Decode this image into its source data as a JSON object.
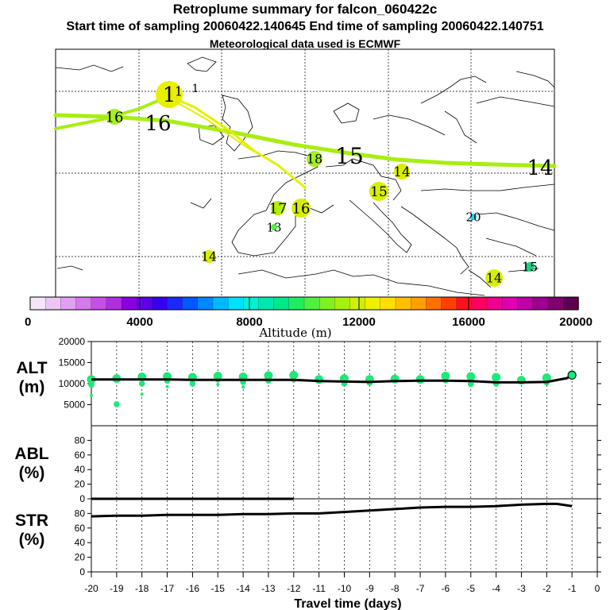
{
  "titles": {
    "main": "Retroplume summary for falcon_060422c",
    "times": "Start time of sampling 20060422.140645     End time of sampling 20060422.140751",
    "met": "Meteorological data used is ECMWF"
  },
  "colorbar": {
    "label": "Altitude (m)",
    "ticks": [
      "0",
      "4000",
      "8000",
      "12000",
      "16000",
      "20000"
    ],
    "colors": [
      "#f4e6f8",
      "#ecc6f4",
      "#e2a0f0",
      "#d47aea",
      "#c450e6",
      "#b02ee0",
      "#8c00e0",
      "#6000e8",
      "#3800f0",
      "#1c28f8",
      "#0058ff",
      "#0088ff",
      "#00b8ff",
      "#00e0ff",
      "#00f0d8",
      "#00e8b0",
      "#00e888",
      "#20ec60",
      "#50f040",
      "#80f020",
      "#a8f010",
      "#d0f000",
      "#f0f000",
      "#ffe000",
      "#ffc000",
      "#ffa000",
      "#ff7000",
      "#ff4000",
      "#ff1020",
      "#ff0060",
      "#f00090",
      "#e000b0",
      "#c000a8",
      "#a00090",
      "#800070",
      "#600050"
    ]
  },
  "map_labels": [
    {
      "text": "1",
      "color": "#e0ef00"
    },
    {
      "text": "1",
      "color": "#e0ef00"
    },
    {
      "text": "1",
      "color": "#e0ef00"
    },
    {
      "text": "16",
      "color": "#a6ee22"
    },
    {
      "text": "16",
      "color": "#d8ef00"
    },
    {
      "text": "18",
      "color": "#a6ee22"
    },
    {
      "text": "15",
      "color": "#a6ee22"
    },
    {
      "text": "14",
      "color": "#d8ef00"
    },
    {
      "text": "14",
      "color": "#b4ef00"
    },
    {
      "text": "15",
      "color": "#d8ef00"
    },
    {
      "text": "17",
      "color": "#b4ef00"
    },
    {
      "text": "16",
      "color": "#d8ef00"
    },
    {
      "text": "13",
      "color": "#50f040"
    },
    {
      "text": "20",
      "color": "#00e0ff"
    },
    {
      "text": "14",
      "color": "#d8ef00"
    },
    {
      "text": "14",
      "color": "#d8ef00"
    },
    {
      "text": "15",
      "color": "#20d080"
    }
  ],
  "chart_data": {
    "type": "line",
    "xlabel": "Travel time (days)",
    "x_ticks": [
      "-20",
      "-19",
      "-18",
      "-17",
      "-16",
      "-15",
      "-14",
      "-13",
      "-12",
      "-11",
      "-10",
      "-9",
      "-8",
      "-7",
      "-6",
      "-5",
      "-4",
      "-3",
      "-2",
      "-1",
      "0"
    ],
    "xlim": [
      -20,
      0
    ],
    "panels": [
      {
        "label_line1": "ALT",
        "label_line2": "(m)",
        "ylim": [
          0,
          20000
        ],
        "y_ticks": [
          "20000",
          "15000",
          "10000",
          "5000"
        ],
        "x": [
          -20,
          -19,
          -18,
          -17,
          -16,
          -15,
          -14,
          -13,
          -12,
          -11,
          -10,
          -9,
          -8,
          -7,
          -6,
          -5,
          -4,
          -3,
          -2,
          -1.2,
          -1
        ],
        "values": [
          11000,
          11000,
          11000,
          11000,
          10900,
          10900,
          10900,
          10900,
          10900,
          10600,
          10500,
          10400,
          10600,
          10700,
          10700,
          10600,
          10300,
          10300,
          10400,
          11300,
          12000
        ],
        "point_clusters": [
          {
            "x": -20,
            "y": [
              11000,
              9700,
              7200
            ]
          },
          {
            "x": -19,
            "y": [
              11200,
              5100
            ]
          },
          {
            "x": -18,
            "y": [
              11600,
              10000,
              7500
            ]
          },
          {
            "x": -17,
            "y": [
              11700,
              10700,
              9300
            ]
          },
          {
            "x": -16,
            "y": [
              11500,
              10000
            ]
          },
          {
            "x": -15,
            "y": [
              11800,
              11000,
              9800
            ]
          },
          {
            "x": -14,
            "y": [
              11600,
              10400,
              9200
            ]
          },
          {
            "x": -13,
            "y": [
              11900,
              10700
            ]
          },
          {
            "x": -12,
            "y": [
              12000,
              11000
            ]
          },
          {
            "x": -11,
            "y": [
              11000
            ]
          },
          {
            "x": -10,
            "y": [
              11200,
              10000
            ]
          },
          {
            "x": -9,
            "y": [
              11000,
              10200
            ]
          },
          {
            "x": -8,
            "y": [
              11100
            ]
          },
          {
            "x": -7,
            "y": [
              11000
            ]
          },
          {
            "x": -6,
            "y": [
              11800,
              10800
            ]
          },
          {
            "x": -5,
            "y": [
              11700,
              9900
            ]
          },
          {
            "x": -4,
            "y": [
              11500,
              10000
            ]
          },
          {
            "x": -3,
            "y": [
              10800
            ]
          },
          {
            "x": -2,
            "y": [
              11400,
              10300
            ]
          },
          {
            "x": -1,
            "y": [
              12100
            ]
          }
        ]
      },
      {
        "label_line1": "ABL",
        "label_line2": "(%)",
        "ylim": [
          0,
          100
        ],
        "y_ticks": [
          "80",
          "60",
          "40",
          "20",
          "0"
        ],
        "x": [
          -20,
          -12
        ],
        "values": [
          0,
          0
        ]
      },
      {
        "label_line1": "STR",
        "label_line2": "(%)",
        "ylim": [
          0,
          100
        ],
        "y_ticks": [
          "80",
          "60",
          "40",
          "20",
          "0"
        ],
        "x": [
          -20,
          -19,
          -18,
          -17,
          -16,
          -15,
          -14,
          -13,
          -12,
          -11,
          -10,
          -9,
          -8,
          -7,
          -6,
          -5,
          -4,
          -3,
          -2,
          -1.6,
          -1
        ],
        "values": [
          76,
          77,
          77,
          78,
          78,
          78,
          79,
          79,
          80,
          80,
          82,
          84,
          86,
          88,
          89,
          89,
          90,
          92,
          93,
          93,
          90
        ]
      }
    ]
  }
}
